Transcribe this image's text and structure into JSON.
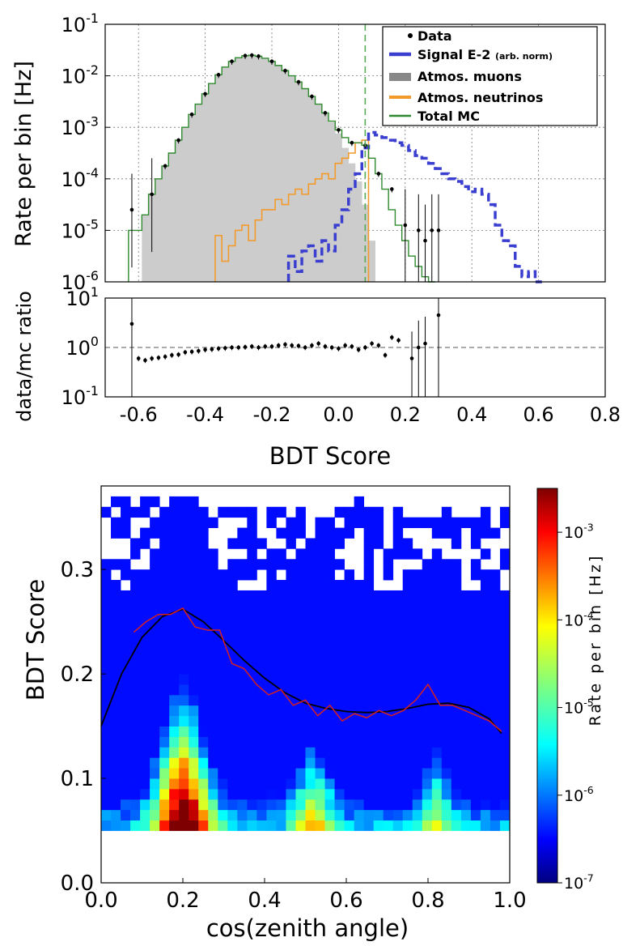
{
  "chart_data": [
    {
      "type": "histogram",
      "yscale": "log",
      "ylabel": "Rate per bin [Hz]",
      "xlim": [
        -0.7,
        0.8
      ],
      "ylim_exp": [
        -6,
        -1
      ],
      "grid": true,
      "legend_position": "top-right",
      "cut_line_x": 0.08,
      "legend": [
        {
          "label": "Data",
          "color": "#000000",
          "style": "dot"
        },
        {
          "label": "Signal E-2",
          "suffix": "(arb. norm)",
          "color": "#3a3fd0",
          "style": "dash"
        },
        {
          "label": "Atmos. muons",
          "color": "#888888",
          "style": "fill"
        },
        {
          "label": "Atmos. neutrinos",
          "color": "#f39a2a",
          "style": "line"
        },
        {
          "label": "Total MC",
          "color": "#2f8a2f",
          "style": "line"
        }
      ],
      "series": [
        {
          "name": "Atmos. muons",
          "x": [
            -0.58,
            -0.56,
            -0.54,
            -0.52,
            -0.5,
            -0.48,
            -0.46,
            -0.44,
            -0.42,
            -0.4,
            -0.38,
            -0.36,
            -0.34,
            -0.32,
            -0.3,
            -0.28,
            -0.26,
            -0.24,
            -0.22,
            -0.2,
            -0.18,
            -0.16,
            -0.14,
            -0.12,
            -0.1,
            -0.08,
            -0.06,
            -0.04,
            -0.02,
            0.0,
            0.02,
            0.04,
            0.06,
            0.08,
            0.1,
            0.12
          ],
          "log10_rate": [
            -4.7,
            -4.3,
            -4.0,
            -3.75,
            -3.5,
            -3.25,
            -3.0,
            -2.75,
            -2.55,
            -2.35,
            -2.15,
            -1.98,
            -1.83,
            -1.72,
            -1.65,
            -1.61,
            -1.6,
            -1.62,
            -1.66,
            -1.72,
            -1.8,
            -1.9,
            -2.0,
            -2.12,
            -2.25,
            -2.4,
            -2.55,
            -2.72,
            -2.9,
            -3.12,
            -3.4,
            -3.7,
            -4.05,
            -4.5,
            -5.2,
            -6.0
          ]
        },
        {
          "name": "Atmos. neutrinos",
          "x": [
            -0.36,
            -0.34,
            -0.32,
            -0.3,
            -0.28,
            -0.26,
            -0.24,
            -0.22,
            -0.2,
            -0.18,
            -0.16,
            -0.14,
            -0.12,
            -0.1,
            -0.08,
            -0.06,
            -0.04,
            -0.02,
            0.0,
            0.02,
            0.04,
            0.06,
            0.08
          ],
          "log10_rate": [
            -5.1,
            -5.6,
            -5.3,
            -5.0,
            -4.9,
            -5.2,
            -4.8,
            -4.6,
            -4.6,
            -4.4,
            -4.5,
            -4.3,
            -4.2,
            -4.3,
            -4.1,
            -4.0,
            -3.9,
            -4.0,
            -3.7,
            -3.6,
            -3.5,
            -3.3,
            -3.25
          ]
        },
        {
          "name": "Signal E-2",
          "x": [
            -0.14,
            -0.12,
            -0.1,
            -0.08,
            -0.06,
            -0.04,
            -0.02,
            0.0,
            0.02,
            0.04,
            0.06,
            0.08,
            0.1,
            0.12,
            0.14,
            0.16,
            0.18,
            0.2,
            0.22,
            0.24,
            0.26,
            0.28,
            0.3,
            0.32,
            0.34,
            0.36,
            0.38,
            0.4,
            0.42,
            0.44,
            0.46,
            0.48,
            0.5,
            0.52,
            0.54,
            0.56,
            0.58,
            0.6
          ],
          "log10_rate": [
            -5.5,
            -5.8,
            -5.4,
            -5.3,
            -5.6,
            -5.2,
            -5.4,
            -4.9,
            -4.6,
            -4.2,
            -3.9,
            -3.4,
            -3.1,
            -3.15,
            -3.2,
            -3.25,
            -3.3,
            -3.35,
            -3.45,
            -3.55,
            -3.6,
            -3.7,
            -3.8,
            -3.9,
            -4.0,
            -4.05,
            -4.15,
            -4.25,
            -4.2,
            -4.3,
            -4.5,
            -4.9,
            -5.2,
            -5.3,
            -5.7,
            -5.9,
            -5.8,
            -6.0
          ]
        },
        {
          "name": "Total MC",
          "x": [
            -0.62,
            -0.6,
            -0.58,
            -0.56,
            -0.54,
            -0.52,
            -0.5,
            -0.48,
            -0.46,
            -0.44,
            -0.42,
            -0.4,
            -0.38,
            -0.36,
            -0.34,
            -0.32,
            -0.3,
            -0.28,
            -0.26,
            -0.24,
            -0.22,
            -0.2,
            -0.18,
            -0.16,
            -0.14,
            -0.12,
            -0.1,
            -0.08,
            -0.06,
            -0.04,
            -0.02,
            0.0,
            0.02,
            0.04,
            0.06,
            0.08,
            0.1,
            0.12,
            0.14,
            0.16,
            0.18,
            0.2,
            0.22,
            0.24,
            0.26,
            0.28
          ],
          "log10_rate": [
            -5.0,
            -5.0,
            -4.7,
            -4.3,
            -4.0,
            -3.75,
            -3.5,
            -3.25,
            -3.0,
            -2.75,
            -2.55,
            -2.35,
            -2.15,
            -1.98,
            -1.83,
            -1.72,
            -1.65,
            -1.61,
            -1.6,
            -1.62,
            -1.66,
            -1.72,
            -1.8,
            -1.9,
            -2.0,
            -2.12,
            -2.25,
            -2.4,
            -2.55,
            -2.72,
            -2.88,
            -3.05,
            -3.2,
            -3.3,
            -3.3,
            -3.35,
            -3.6,
            -3.9,
            -4.2,
            -4.6,
            -4.9,
            -5.2,
            -5.5,
            -5.7,
            -5.9,
            -6.0
          ]
        },
        {
          "name": "Data",
          "x": [
            -0.62,
            -0.56,
            -0.52,
            -0.48,
            -0.44,
            -0.4,
            -0.36,
            -0.32,
            -0.28,
            -0.26,
            -0.24,
            -0.2,
            -0.16,
            -0.12,
            -0.08,
            -0.04,
            0.0,
            0.04,
            0.08,
            0.12,
            0.16,
            0.2,
            0.24,
            0.26,
            0.28,
            0.3
          ],
          "log10_rate": [
            -4.6,
            -4.3,
            -3.75,
            -3.25,
            -2.75,
            -2.35,
            -1.98,
            -1.72,
            -1.61,
            -1.6,
            -1.62,
            -1.72,
            -1.9,
            -2.12,
            -2.4,
            -2.72,
            -3.05,
            -3.3,
            -3.35,
            -3.9,
            -4.2,
            -4.9,
            -5.0,
            -5.2,
            -5.0,
            -5.0
          ]
        }
      ]
    },
    {
      "type": "scatter",
      "yscale": "log",
      "ylabel": "data/mc ratio",
      "xlabel": "BDT Score",
      "xlim": [
        -0.7,
        0.8
      ],
      "xticks": [
        "-0.6",
        "-0.4",
        "-0.2",
        "0.0",
        "0.2",
        "0.4",
        "0.6",
        "0.8"
      ],
      "ylim_exp": [
        -1,
        1
      ],
      "reference_line": 1,
      "x": [
        -0.62,
        -0.6,
        -0.58,
        -0.56,
        -0.54,
        -0.52,
        -0.5,
        -0.48,
        -0.46,
        -0.44,
        -0.42,
        -0.4,
        -0.38,
        -0.36,
        -0.34,
        -0.32,
        -0.3,
        -0.28,
        -0.26,
        -0.24,
        -0.22,
        -0.2,
        -0.18,
        -0.16,
        -0.14,
        -0.12,
        -0.1,
        -0.08,
        -0.06,
        -0.04,
        -0.02,
        0.0,
        0.02,
        0.04,
        0.06,
        0.08,
        0.1,
        0.12,
        0.14,
        0.16,
        0.18,
        0.22,
        0.24,
        0.26,
        0.3
      ],
      "ratio": [
        3.0,
        0.6,
        0.55,
        0.6,
        0.62,
        0.65,
        0.7,
        0.72,
        0.8,
        0.82,
        0.85,
        0.9,
        0.92,
        0.95,
        0.97,
        1.0,
        1.0,
        1.02,
        1.05,
        1.0,
        1.05,
        1.05,
        1.1,
        1.15,
        1.1,
        1.08,
        1.0,
        1.1,
        1.2,
        1.05,
        1.0,
        0.95,
        1.1,
        1.05,
        0.9,
        1.0,
        1.2,
        1.1,
        0.7,
        1.6,
        1.4,
        0.6,
        1.0,
        1.2,
        4.5
      ]
    },
    {
      "type": "heatmap",
      "xlabel": "cos(zenith angle)",
      "ylabel": "BDT Score",
      "xlim": [
        0.0,
        1.0
      ],
      "ylim": [
        0.0,
        0.38
      ],
      "xticks": [
        "0.0",
        "0.2",
        "0.4",
        "0.6",
        "0.8",
        "1.0"
      ],
      "yticks": [
        "0.0",
        "0.1",
        "0.2",
        "0.3"
      ],
      "colorbar": {
        "label": "Rate per bin [Hz]",
        "scale": "log",
        "range_exp": [
          -7,
          -2.5
        ],
        "ticks": [
          -7,
          -6,
          -5,
          -4,
          -3
        ]
      },
      "curves": [
        {
          "color": "#000000",
          "x": [
            0.0,
            0.05,
            0.1,
            0.15,
            0.2,
            0.25,
            0.3,
            0.35,
            0.4,
            0.45,
            0.5,
            0.55,
            0.6,
            0.65,
            0.7,
            0.75,
            0.8,
            0.85,
            0.9,
            0.95,
            0.98
          ],
          "y": [
            0.15,
            0.2,
            0.235,
            0.255,
            0.262,
            0.25,
            0.232,
            0.213,
            0.196,
            0.182,
            0.172,
            0.167,
            0.164,
            0.163,
            0.164,
            0.167,
            0.171,
            0.172,
            0.168,
            0.157,
            0.143
          ]
        },
        {
          "color": "#d62020",
          "x": [
            0.08,
            0.11,
            0.14,
            0.17,
            0.2,
            0.23,
            0.26,
            0.29,
            0.32,
            0.35,
            0.38,
            0.41,
            0.44,
            0.47,
            0.5,
            0.53,
            0.56,
            0.59,
            0.62,
            0.65,
            0.68,
            0.71,
            0.74,
            0.77,
            0.8,
            0.83,
            0.86,
            0.89,
            0.92,
            0.95,
            0.98
          ],
          "y": [
            0.24,
            0.25,
            0.257,
            0.257,
            0.263,
            0.245,
            0.242,
            0.242,
            0.21,
            0.205,
            0.19,
            0.18,
            0.185,
            0.17,
            0.175,
            0.16,
            0.17,
            0.155,
            0.162,
            0.158,
            0.165,
            0.16,
            0.165,
            0.175,
            0.19,
            0.17,
            0.17,
            0.165,
            0.16,
            0.155,
            0.145
          ]
        }
      ]
    }
  ]
}
